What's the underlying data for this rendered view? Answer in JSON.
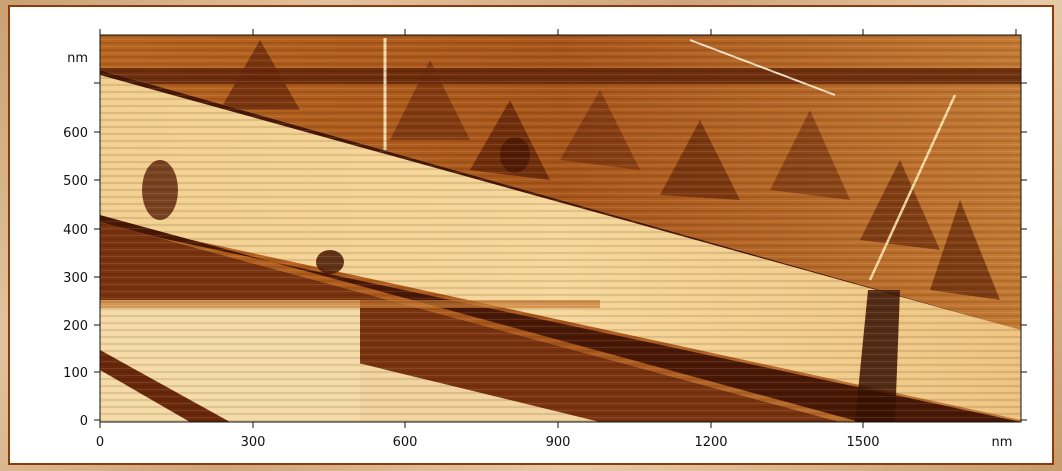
{
  "image": {
    "description_colors": {
      "frame_border": "#8a3c0a",
      "low": "#5a1e05",
      "mid": "#c9772a",
      "high": "#fbe6b4"
    }
  },
  "axes": {
    "y_unit": "nm",
    "x_unit": "nm",
    "y_ticks": [
      "0",
      "100",
      "200",
      "300",
      "400",
      "500",
      "600"
    ],
    "x_ticks": [
      "0",
      "300",
      "600",
      "900",
      "1200",
      "1500"
    ]
  }
}
